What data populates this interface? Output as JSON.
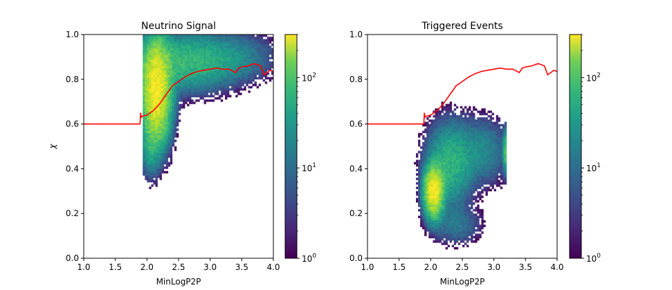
{
  "colorbar": {
    "colormap": "viridis",
    "scale": "log",
    "range": [
      1,
      300
    ],
    "tick_labels": [
      {
        "base": "10",
        "exp": "0",
        "value": 1
      },
      {
        "base": "10",
        "exp": "1",
        "value": 10
      },
      {
        "base": "10",
        "exp": "2",
        "value": 100
      }
    ]
  },
  "chart_data": [
    {
      "type": "heatmap",
      "title": "Neutrino Signal",
      "xlabel": "MinLogP2P",
      "ylabel": "χ",
      "xlim": [
        1.0,
        4.0
      ],
      "ylim": [
        0.0,
        1.0
      ],
      "xticks": [
        "1.0",
        "1.5",
        "2.0",
        "2.5",
        "3.0",
        "3.5",
        "4.0"
      ],
      "yticks": [
        "0.0",
        "0.2",
        "0.4",
        "0.6",
        "0.8",
        "1.0"
      ],
      "cut_line": {
        "color": "#ff0000",
        "x": [
          1.0,
          1.89,
          1.9,
          1.91,
          1.93,
          2.0,
          2.1,
          2.2,
          2.3,
          2.4,
          2.5,
          2.6,
          2.7,
          2.8,
          2.9,
          3.0,
          3.1,
          3.2,
          3.3,
          3.4,
          3.45,
          3.5,
          3.6,
          3.7,
          3.8,
          3.85,
          3.9,
          3.95,
          4.0
        ],
        "y": [
          0.6,
          0.6,
          0.65,
          0.63,
          0.635,
          0.64,
          0.66,
          0.69,
          0.73,
          0.77,
          0.79,
          0.81,
          0.825,
          0.835,
          0.84,
          0.845,
          0.85,
          0.845,
          0.845,
          0.83,
          0.85,
          0.855,
          0.86,
          0.87,
          0.86,
          0.82,
          0.83,
          0.84,
          0.835
        ]
      },
      "density_clusters": [
        {
          "x": 2.15,
          "y": 0.75,
          "sx": 0.12,
          "sy": 0.12,
          "peak": 300
        },
        {
          "x": 2.6,
          "y": 0.88,
          "sx": 0.45,
          "sy": 0.07,
          "peak": 45
        },
        {
          "x": 3.4,
          "y": 0.9,
          "sx": 0.35,
          "sy": 0.06,
          "peak": 12
        },
        {
          "x": 2.05,
          "y": 0.5,
          "sx": 0.08,
          "sy": 0.07,
          "peak": 25
        }
      ]
    },
    {
      "type": "heatmap",
      "title": "Triggered Events",
      "xlabel": "MinLogP2P",
      "ylabel": "",
      "xlim": [
        1.0,
        4.0
      ],
      "ylim": [
        0.0,
        1.0
      ],
      "xticks": [
        "1.0",
        "1.5",
        "2.0",
        "2.5",
        "3.0",
        "3.5",
        "4.0"
      ],
      "yticks": [
        "0.0",
        "0.2",
        "0.4",
        "0.6",
        "0.8",
        "1.0"
      ],
      "cut_line": {
        "color": "#ff0000",
        "x": [
          1.0,
          1.89,
          1.9,
          1.91,
          1.93,
          2.0,
          2.1,
          2.2,
          2.3,
          2.4,
          2.5,
          2.6,
          2.7,
          2.8,
          2.9,
          3.0,
          3.1,
          3.2,
          3.3,
          3.4,
          3.45,
          3.5,
          3.6,
          3.7,
          3.8,
          3.85,
          3.9,
          3.95,
          4.0
        ],
        "y": [
          0.6,
          0.6,
          0.65,
          0.63,
          0.635,
          0.64,
          0.66,
          0.69,
          0.73,
          0.77,
          0.79,
          0.81,
          0.825,
          0.835,
          0.84,
          0.845,
          0.85,
          0.845,
          0.845,
          0.83,
          0.85,
          0.855,
          0.86,
          0.87,
          0.86,
          0.82,
          0.83,
          0.84,
          0.835
        ]
      },
      "density_clusters": [
        {
          "x": 2.05,
          "y": 0.3,
          "sx": 0.08,
          "sy": 0.06,
          "peak": 300
        },
        {
          "x": 2.3,
          "y": 0.42,
          "sx": 0.2,
          "sy": 0.1,
          "peak": 40
        },
        {
          "x": 2.8,
          "y": 0.48,
          "sx": 0.25,
          "sy": 0.08,
          "peak": 15
        },
        {
          "x": 2.4,
          "y": 0.15,
          "sx": 0.22,
          "sy": 0.05,
          "peak": 10
        },
        {
          "x": 3.18,
          "y": 0.48,
          "sx": 0.02,
          "sy": 0.05,
          "peak": 60
        }
      ]
    }
  ]
}
